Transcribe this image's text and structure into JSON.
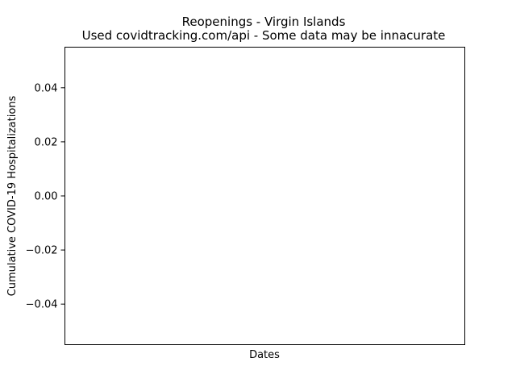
{
  "chart_data": {
    "type": "line",
    "title": "Reopenings - Virgin Islands",
    "subtitle": "Used covidtracking.com/api - Some data may be innacurate",
    "xlabel": "Dates",
    "ylabel": "Cumulative COVID-19 Hospitalizations",
    "ylim": [
      -0.055,
      0.055
    ],
    "yticks": [
      -0.04,
      -0.02,
      0.0,
      0.02,
      0.04
    ],
    "ytick_labels": [
      "−0.04",
      "−0.02",
      "0.00",
      "0.02",
      "0.04"
    ],
    "x": [],
    "series": [],
    "grid": false
  }
}
